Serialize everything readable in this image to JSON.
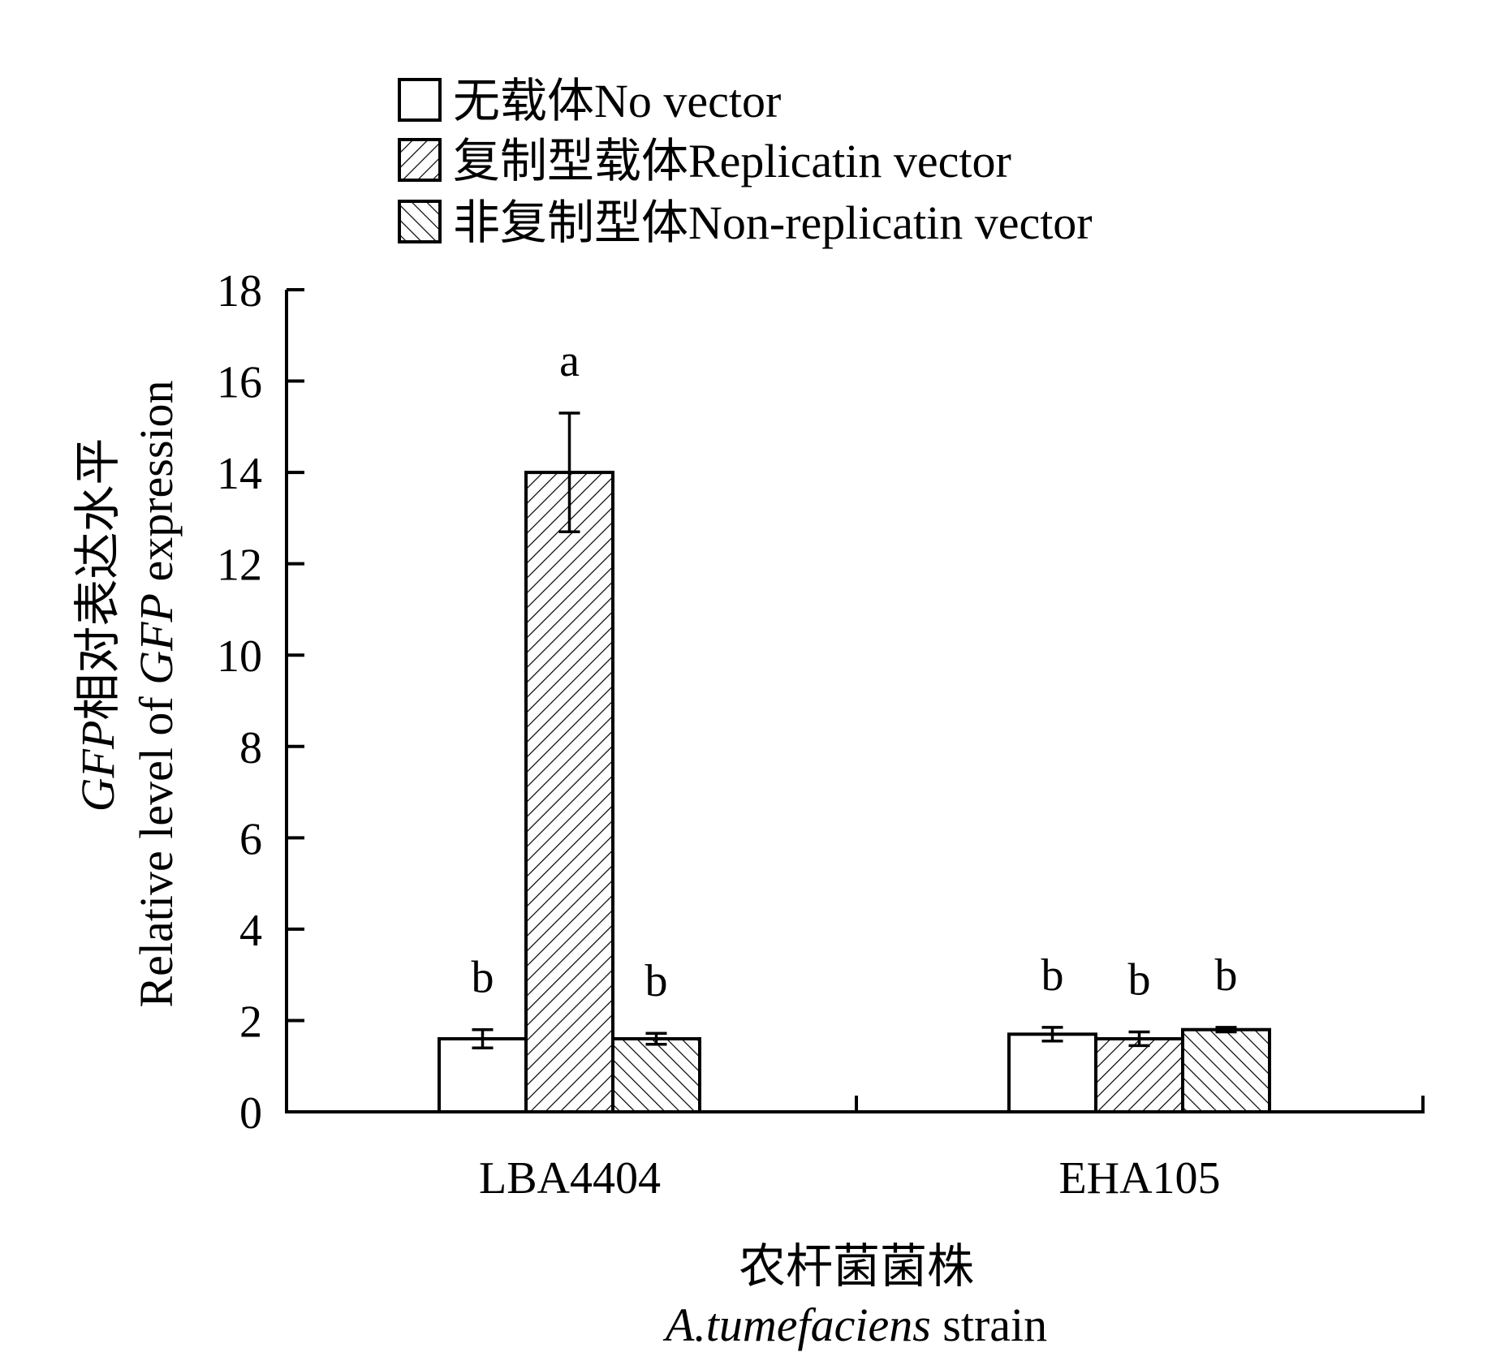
{
  "chart_data": {
    "type": "bar",
    "categories": [
      "LBA4404",
      "EHA105"
    ],
    "series": [
      {
        "name": "无载体No vector",
        "values": [
          1.6,
          1.7
        ],
        "errors": [
          0.2,
          0.15
        ],
        "letters": [
          "b",
          "b"
        ],
        "pattern": "none"
      },
      {
        "name": "复制型载体Replicatin vector",
        "values": [
          14.0,
          1.6
        ],
        "errors": [
          1.3,
          0.15
        ],
        "letters": [
          "a",
          "b"
        ],
        "pattern": "forward-diagonal"
      },
      {
        "name": "非复制型体Non-replicatin vector",
        "values": [
          1.6,
          1.8
        ],
        "errors": [
          0.12,
          0.05
        ],
        "letters": [
          "b",
          "b"
        ],
        "pattern": "backward-diagonal"
      }
    ],
    "ylabel_line1_italic": "GFP",
    "ylabel_line1_rest": "相对表达水平",
    "ylabel_line2_prefix": "Relative level of ",
    "ylabel_line2_italic": "GFP",
    "ylabel_line2_suffix": " expression",
    "xlabel_line1": "农杆菌菌株",
    "xlabel_line2_italic": "A.tumefaciens",
    "xlabel_line2_suffix": " strain",
    "ylim": [
      0,
      18
    ],
    "yticks": [
      0,
      2,
      4,
      6,
      8,
      10,
      12,
      14,
      16,
      18
    ],
    "grid": false,
    "legend_position": "top-left"
  }
}
